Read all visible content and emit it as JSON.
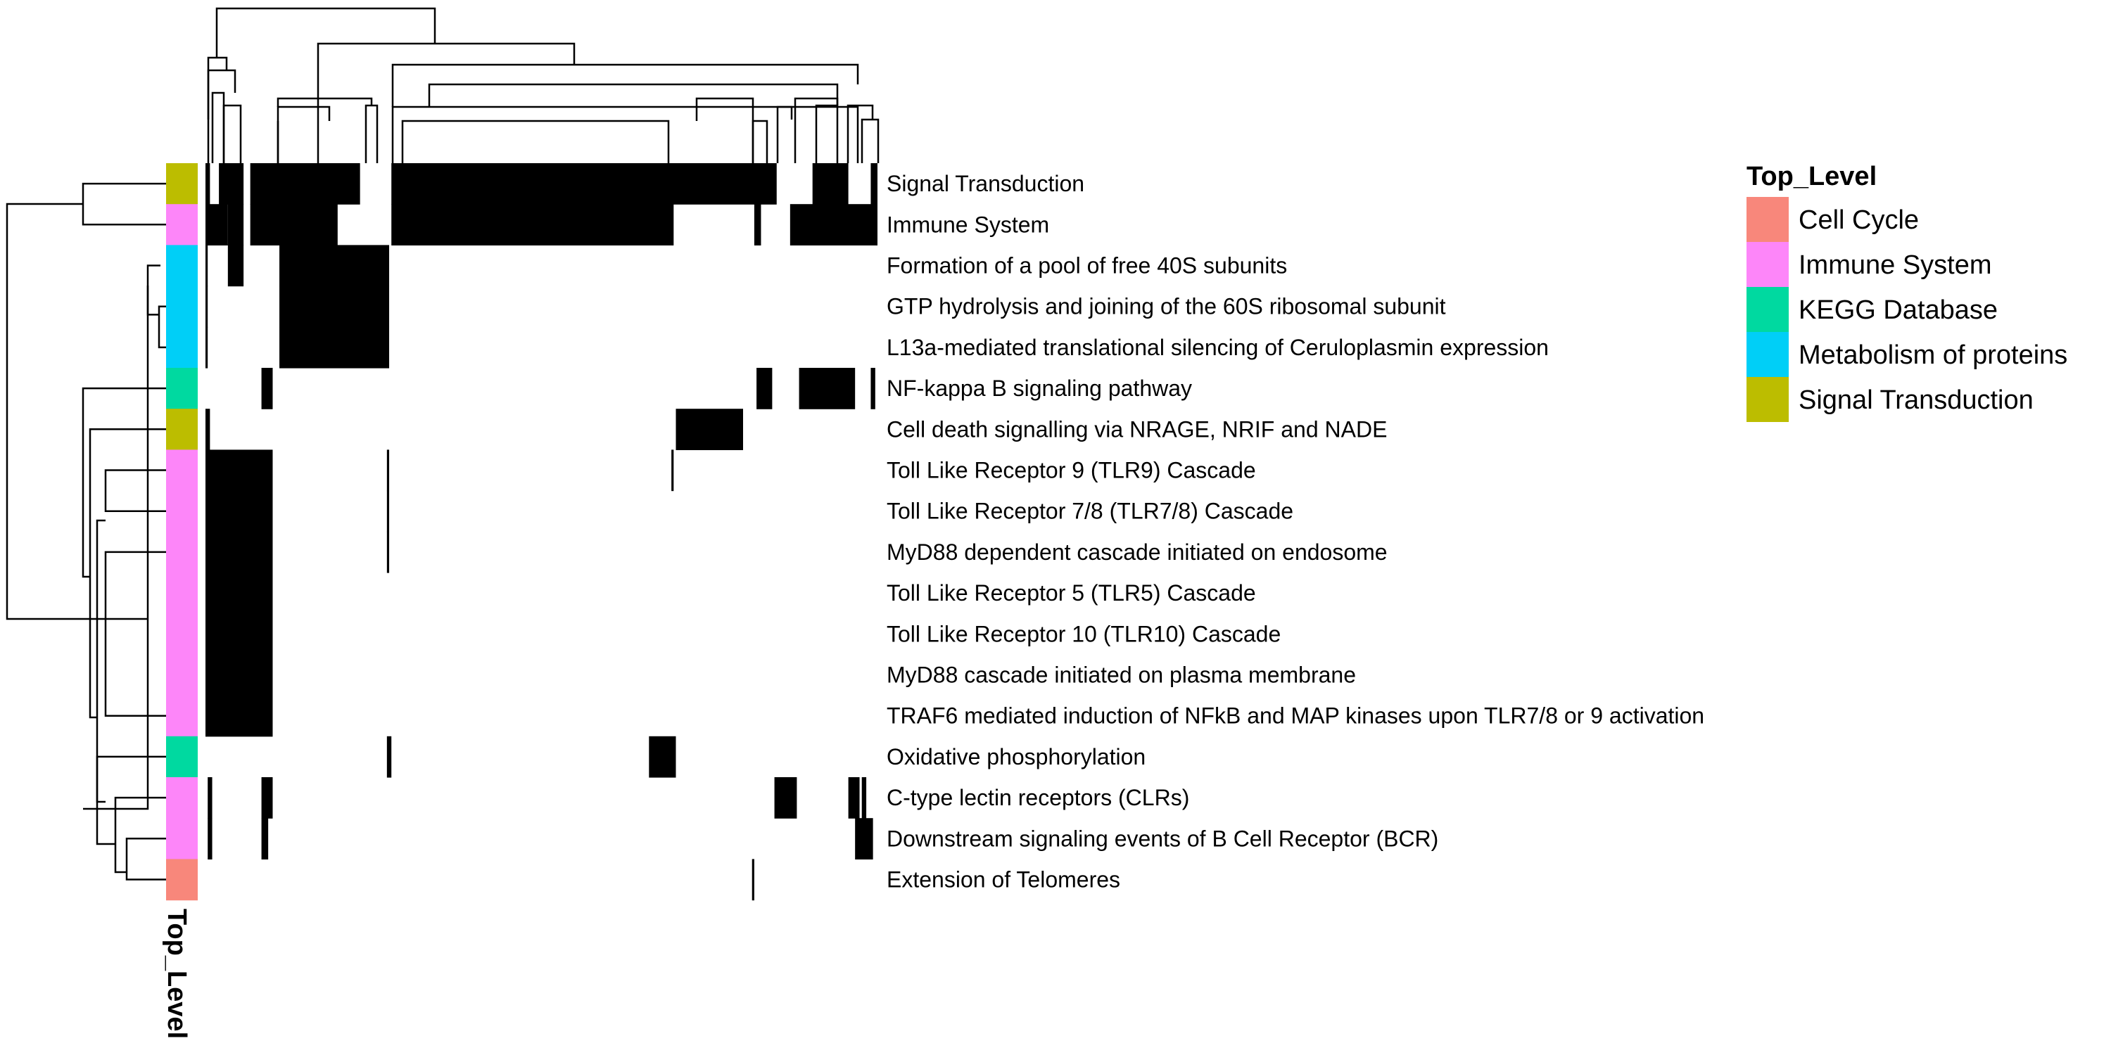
{
  "chart_data": {
    "type": "heatmap",
    "rows": [
      {
        "label": "Signal Transduction",
        "category": "Signal Transduction"
      },
      {
        "label": "Immune System",
        "category": "Immune System"
      },
      {
        "label": "Formation of a pool of free 40S subunits",
        "category": "Metabolism of proteins"
      },
      {
        "label": "GTP hydrolysis and joining of the 60S ribosomal subunit",
        "category": "Metabolism of proteins"
      },
      {
        "label": "L13a-mediated translational silencing of Ceruloplasmin expression",
        "category": "Metabolism of proteins"
      },
      {
        "label": "NF-kappa B signaling pathway",
        "category": "KEGG Database"
      },
      {
        "label": "Cell death signalling via NRAGE, NRIF and NADE",
        "category": "Signal Transduction"
      },
      {
        "label": "Toll Like Receptor 9 (TLR9) Cascade",
        "category": "Immune System"
      },
      {
        "label": "Toll Like Receptor 7/8 (TLR7/8) Cascade",
        "category": "Immune System"
      },
      {
        "label": "MyD88 dependent cascade initiated on endosome",
        "category": "Immune System"
      },
      {
        "label": "Toll Like Receptor 5 (TLR5) Cascade",
        "category": "Immune System"
      },
      {
        "label": "Toll Like Receptor 10 (TLR10) Cascade",
        "category": "Immune System"
      },
      {
        "label": "MyD88 cascade initiated on plasma membrane",
        "category": "Immune System"
      },
      {
        "label": "TRAF6 mediated induction of NFkB and MAP kinases upon TLR7/8 or 9 activation",
        "category": "Immune System"
      },
      {
        "label": "Oxidative phosphorylation",
        "category": "KEGG Database"
      },
      {
        "label": "C-type lectin receptors (CLRs)",
        "category": "Immune System"
      },
      {
        "label": "Downstream signaling events of B Cell Receptor (BCR)",
        "category": "Immune System"
      },
      {
        "label": "Extension of Telomeres",
        "category": "Cell Cycle"
      }
    ],
    "column_count": 300,
    "membership": [
      [
        [
          0,
          2
        ],
        [
          6,
          11
        ],
        [
          10,
          17
        ],
        [
          20,
          69
        ],
        [
          83,
          255
        ],
        [
          271,
          287
        ],
        [
          297,
          300
        ]
      ],
      [
        [
          0,
          10
        ],
        [
          10,
          17
        ],
        [
          20,
          59
        ],
        [
          83,
          209
        ],
        [
          245,
          248
        ],
        [
          261,
          300
        ]
      ],
      [
        [
          0,
          1
        ],
        [
          10,
          17
        ],
        [
          33,
          82
        ]
      ],
      [
        [
          0,
          1
        ],
        [
          33,
          82
        ]
      ],
      [
        [
          0,
          1
        ],
        [
          33,
          82
        ]
      ],
      [
        [
          25,
          30
        ],
        [
          246,
          253
        ],
        [
          265,
          290
        ],
        [
          297,
          299
        ]
      ],
      [
        [
          0,
          2
        ],
        [
          210,
          240
        ]
      ],
      [
        [
          0,
          30
        ],
        [
          81,
          82
        ],
        [
          208,
          209
        ]
      ],
      [
        [
          0,
          30
        ],
        [
          81,
          82
        ]
      ],
      [
        [
          0,
          30
        ],
        [
          81,
          82
        ]
      ],
      [
        [
          0,
          30
        ]
      ],
      [
        [
          0,
          30
        ]
      ],
      [
        [
          0,
          30
        ]
      ],
      [
        [
          0,
          30
        ]
      ],
      [
        [
          81,
          83
        ],
        [
          198,
          210
        ]
      ],
      [
        [
          1,
          3
        ],
        [
          25,
          30
        ],
        [
          254,
          264
        ],
        [
          287,
          292
        ],
        [
          293,
          295
        ]
      ],
      [
        [
          1,
          3
        ],
        [
          25,
          28
        ],
        [
          290,
          298
        ]
      ],
      [
        [
          244,
          245
        ]
      ]
    ],
    "legend": {
      "title": "Top_Level",
      "position": "right",
      "entries": [
        {
          "label": "Cell Cycle",
          "color": "#F8877B"
        },
        {
          "label": "Immune System",
          "color": "#FD86F9"
        },
        {
          "label": "KEGG Database",
          "color": "#00D9A0"
        },
        {
          "label": "Metabolism of proteins",
          "color": "#00CFF7"
        },
        {
          "label": "Signal Transduction",
          "color": "#BCBD00"
        }
      ]
    },
    "annotation_title": "Top_Level",
    "colors": {
      "cell_on": "#000000",
      "cell_off": "#FFFFFF",
      "line": "#000000"
    }
  }
}
